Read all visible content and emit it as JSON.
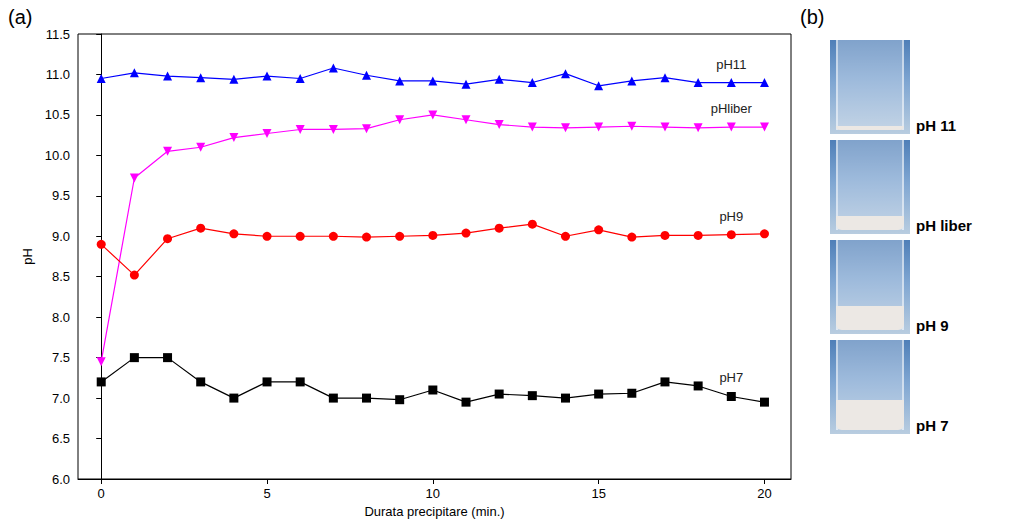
{
  "chart_data": {
    "type": "line",
    "panel_label": "(a)",
    "x_label": "Durata precipitare (min.)",
    "y_label": "pH",
    "x": [
      0,
      1,
      2,
      3,
      4,
      5,
      6,
      7,
      8,
      9,
      10,
      11,
      12,
      13,
      14,
      15,
      16,
      17,
      18,
      19,
      20
    ],
    "series": [
      {
        "name": "pH11",
        "color": "#0000ff",
        "marker": "triangle-up",
        "values": [
          10.95,
          11.02,
          10.98,
          10.96,
          10.94,
          10.98,
          10.95,
          11.08,
          10.99,
          10.92,
          10.92,
          10.88,
          10.94,
          10.9,
          11.01,
          10.86,
          10.92,
          10.96,
          10.9,
          10.9,
          10.9
        ]
      },
      {
        "name": "pHliber",
        "color": "#ff00ff",
        "marker": "triangle-down",
        "values": [
          7.45,
          9.72,
          10.05,
          10.1,
          10.22,
          10.27,
          10.32,
          10.32,
          10.33,
          10.44,
          10.5,
          10.44,
          10.38,
          10.35,
          10.34,
          10.35,
          10.36,
          10.35,
          10.34,
          10.35,
          10.35
        ]
      },
      {
        "name": "pH9",
        "color": "#ff0000",
        "marker": "circle",
        "values": [
          8.9,
          8.52,
          8.97,
          9.1,
          9.03,
          9.0,
          9.0,
          9.0,
          8.99,
          9.0,
          9.01,
          9.04,
          9.1,
          9.15,
          9.0,
          9.08,
          8.99,
          9.01,
          9.01,
          9.02,
          9.03
        ]
      },
      {
        "name": "pH7",
        "color": "#000000",
        "marker": "square",
        "values": [
          7.2,
          7.5,
          7.5,
          7.2,
          7.0,
          7.2,
          7.2,
          7.0,
          7.0,
          6.98,
          7.1,
          6.95,
          7.05,
          7.03,
          7.0,
          7.05,
          7.06,
          7.2,
          7.15,
          7.02,
          6.95
        ]
      }
    ],
    "xlim": [
      -0.7,
      20.8
    ],
    "xticks": [
      0,
      5,
      10,
      15,
      20
    ],
    "ylim": [
      6.0,
      11.5
    ],
    "yticks": [
      {
        "value": 6,
        "label": "6.0"
      },
      6.5,
      {
        "value": 7,
        "label": "7.0"
      },
      7.5,
      {
        "value": 8,
        "label": "8.0"
      },
      8.5,
      {
        "value": 9,
        "label": "9.0"
      },
      9.5,
      {
        "value": 10,
        "label": "10.0"
      },
      10.5,
      {
        "value": 11,
        "label": "11.0"
      },
      11.5
    ],
    "grid": false
  },
  "photos": {
    "panel_label": "(b)",
    "labels": [
      "pH 11",
      "pH liber",
      "pH 9",
      "pH 7"
    ]
  }
}
